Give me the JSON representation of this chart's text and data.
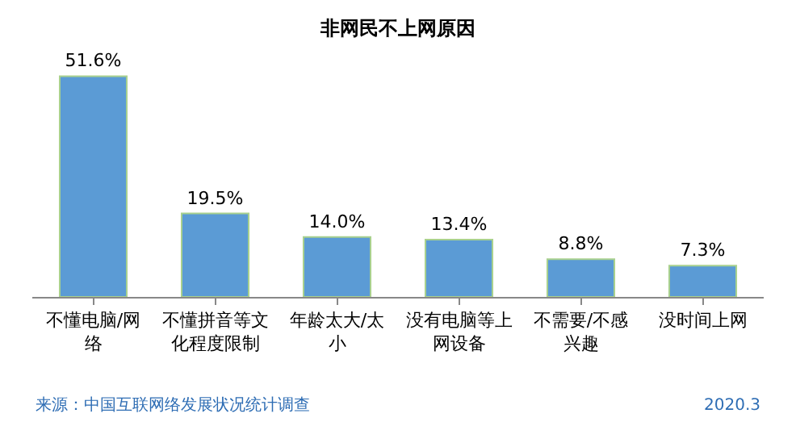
{
  "chart_data": {
    "type": "bar",
    "title": "非网民不上网原因",
    "categories": [
      "不懂电脑/网络",
      "不懂拼音等文化程度限制",
      "年龄太大/太小",
      "没有电脑等上网设备",
      "不需要/不感兴趣",
      "没时间上网"
    ],
    "values": [
      51.6,
      19.5,
      14.0,
      13.4,
      8.8,
      7.3
    ],
    "value_labels": [
      "51.6%",
      "19.5%",
      "14.0%",
      "13.4%",
      "8.8%",
      "7.3%"
    ],
    "color": "#5b9bd5",
    "legend": false,
    "tick_labels": "x",
    "annotations": [
      "来源：中国互联网络发展状况统计调查",
      "2020.3"
    ]
  }
}
